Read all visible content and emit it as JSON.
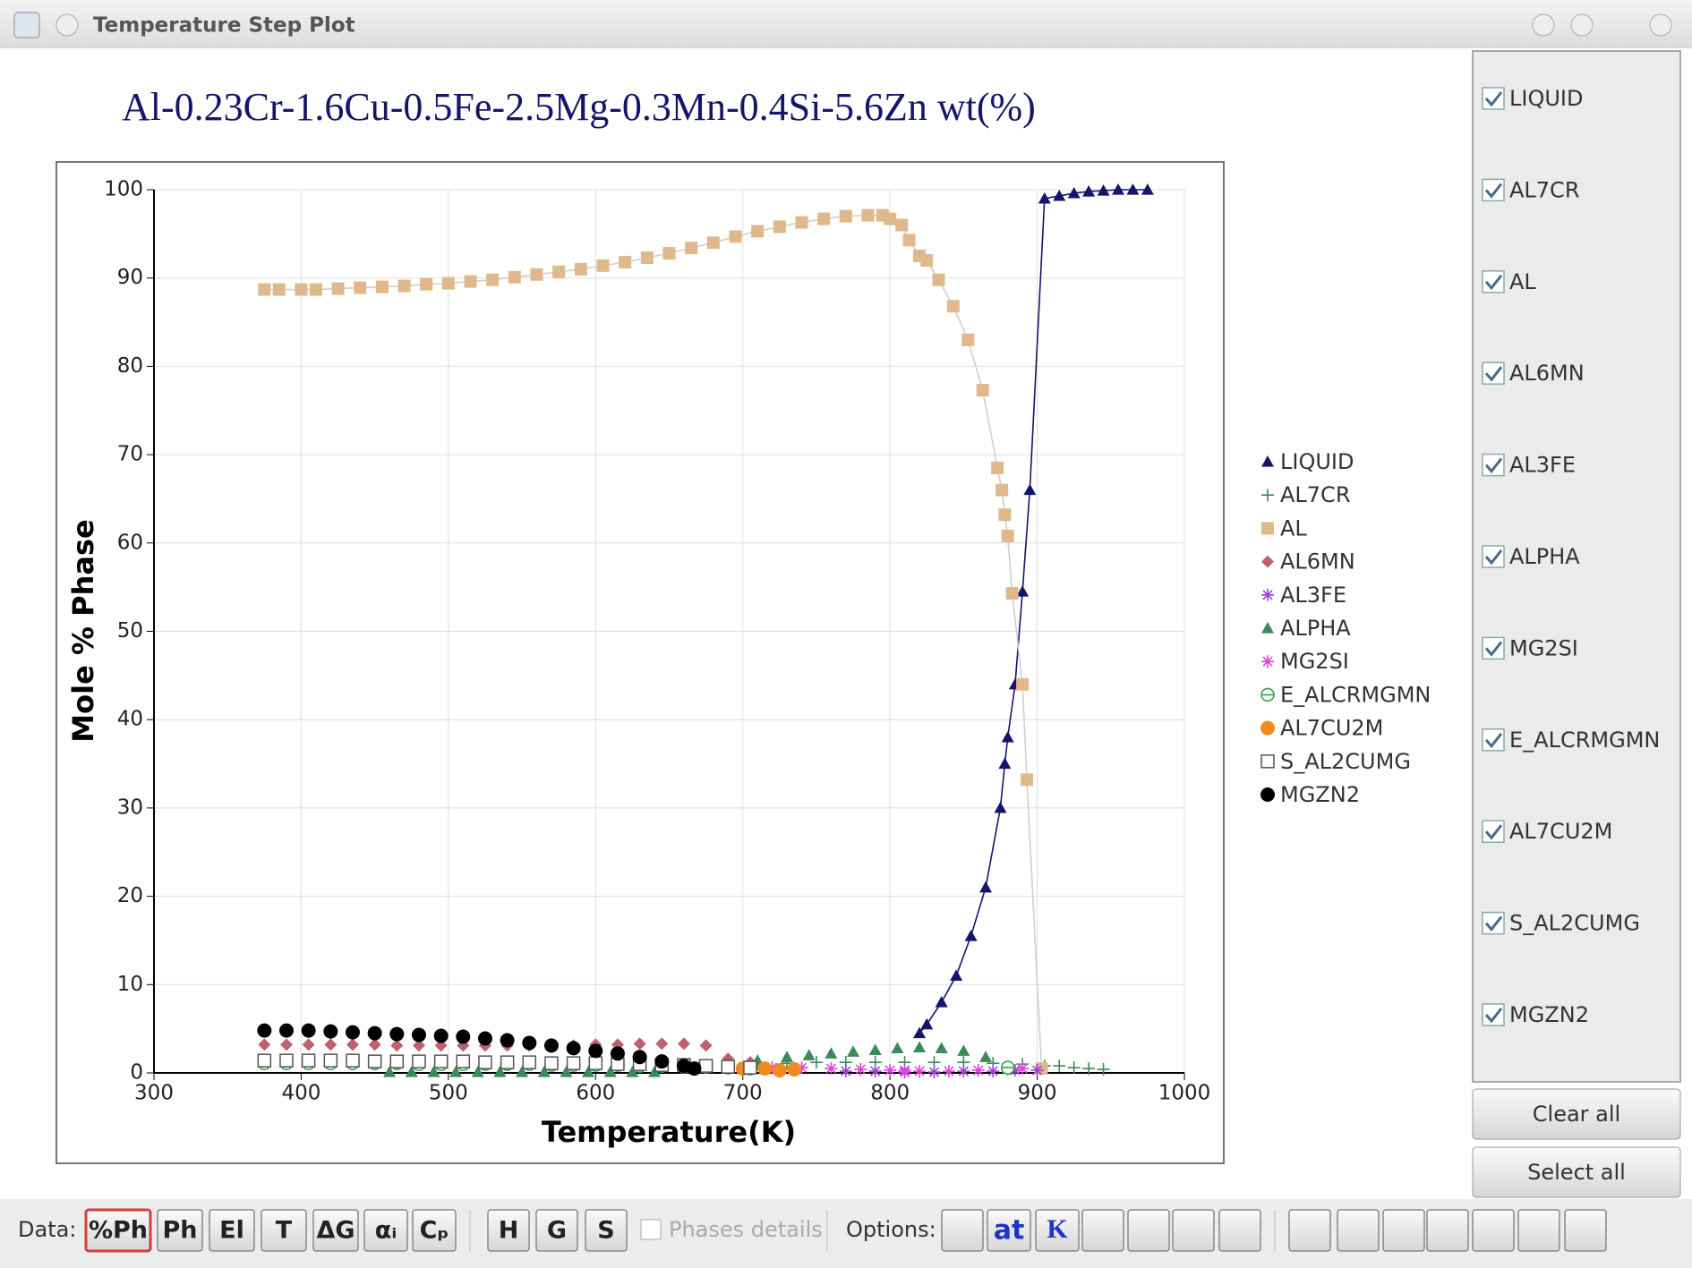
{
  "window": {
    "title": "Temperature Step Plot"
  },
  "chart_data": {
    "type": "scatter",
    "title": "Al-0.23Cr-1.6Cu-0.5Fe-2.5Mg-0.3Mn-0.4Si-5.6Zn wt(%)",
    "x_label": "Temperature(K)",
    "y_label": "Mole % Phase",
    "xlim": [
      300,
      1000
    ],
    "xticks": [
      300,
      400,
      500,
      600,
      700,
      800,
      900,
      1000
    ],
    "ylim": [
      0,
      100
    ],
    "yticks": [
      0,
      10,
      20,
      30,
      40,
      50,
      60,
      70,
      80,
      90,
      100
    ],
    "grid": true,
    "legend": "right",
    "series": [
      {
        "name": "LIQUID",
        "color": "#15156b",
        "marker": "triangle",
        "line": true,
        "x": [
          820,
          825,
          835,
          845,
          855,
          865,
          875,
          878,
          880,
          885,
          890,
          895,
          905,
          915,
          925,
          935,
          945,
          955,
          965,
          975
        ],
        "values": [
          4.5,
          5.5,
          8,
          11,
          15.5,
          21,
          30,
          35,
          38,
          44,
          54.5,
          66,
          99,
          99.3,
          99.6,
          99.8,
          99.9,
          100,
          100,
          100
        ]
      },
      {
        "name": "AL7CR",
        "color": "#3a8a5a",
        "marker": "plus",
        "x": [
          690,
          710,
          730,
          750,
          770,
          790,
          810,
          830,
          850,
          870,
          890,
          905,
          915,
          925,
          935,
          945
        ],
        "values": [
          0.9,
          1.0,
          1.1,
          1.2,
          1.2,
          1.2,
          1.2,
          1.2,
          1.2,
          1.1,
          1.0,
          0.8,
          0.8,
          0.6,
          0.5,
          0.4
        ]
      },
      {
        "name": "AL",
        "color": "#dfb98c",
        "marker": "square",
        "line": true,
        "x": [
          375,
          385,
          400,
          410,
          425,
          440,
          455,
          470,
          485,
          500,
          515,
          530,
          545,
          560,
          575,
          590,
          605,
          620,
          635,
          650,
          665,
          680,
          695,
          710,
          725,
          740,
          755,
          770,
          785,
          795,
          800,
          808,
          813,
          820,
          825,
          833,
          843,
          853,
          863,
          873,
          876,
          878,
          880,
          883,
          890,
          893,
          903
        ],
        "values": [
          88.7,
          88.7,
          88.7,
          88.7,
          88.8,
          88.9,
          89.0,
          89.1,
          89.3,
          89.4,
          89.6,
          89.8,
          90.1,
          90.4,
          90.7,
          91.0,
          91.4,
          91.8,
          92.3,
          92.8,
          93.4,
          94.0,
          94.7,
          95.3,
          95.8,
          96.3,
          96.7,
          97.0,
          97.1,
          97.1,
          96.7,
          96.0,
          94.3,
          92.5,
          92.0,
          89.8,
          86.8,
          83.0,
          77.3,
          68.5,
          66.0,
          63.2,
          60.8,
          54.3,
          44.0,
          33.2,
          0.5
        ]
      },
      {
        "name": "AL6MN",
        "color": "#c0606e",
        "marker": "diamond",
        "x": [
          375,
          390,
          405,
          420,
          435,
          450,
          465,
          480,
          495,
          510,
          525,
          540,
          555,
          570,
          585,
          600,
          615,
          630,
          645,
          660,
          675,
          690,
          705
        ],
        "values": [
          3.2,
          3.2,
          3.2,
          3.2,
          3.2,
          3.2,
          3.1,
          3.1,
          3.1,
          3.1,
          3.1,
          3.1,
          3.1,
          3.1,
          3.1,
          3.2,
          3.2,
          3.3,
          3.3,
          3.3,
          3.1,
          1.6,
          1.2
        ]
      },
      {
        "name": "AL3FE",
        "color": "#a040d0",
        "marker": "star",
        "x": [
          770,
          790,
          810,
          830,
          850,
          870,
          885,
          900
        ],
        "values": [
          0.2,
          0.2,
          0.1,
          0.1,
          0.2,
          0.2,
          0.3,
          0.3
        ]
      },
      {
        "name": "ALPHA",
        "color": "#3a8a5a",
        "marker": "triangle",
        "x": [
          460,
          475,
          490,
          505,
          520,
          535,
          550,
          565,
          580,
          595,
          610,
          625,
          640,
          670,
          690,
          710,
          730,
          745,
          760,
          775,
          790,
          805,
          820,
          835,
          850,
          865,
          880
        ],
        "values": [
          0.1,
          0.1,
          0.1,
          0.1,
          0.1,
          0.1,
          0.1,
          0.1,
          0.1,
          0.1,
          0.1,
          0.1,
          0.1,
          0.6,
          1.0,
          1.4,
          1.8,
          2.0,
          2.2,
          2.4,
          2.6,
          2.8,
          2.9,
          2.8,
          2.5,
          1.8,
          0.6
        ]
      },
      {
        "name": "MG2SI",
        "color": "#e040e0",
        "marker": "star",
        "x": [
          700,
          720,
          740,
          760,
          780,
          800,
          810,
          820,
          840,
          860,
          880,
          890
        ],
        "values": [
          0.5,
          0.6,
          0.6,
          0.5,
          0.4,
          0.3,
          0.3,
          0.2,
          0.2,
          0.3,
          0.4,
          0.5
        ]
      },
      {
        "name": "E_ALCRMGMN",
        "color": "#3aa050",
        "marker": "circle-open",
        "x": [
          375,
          390,
          405,
          420,
          435,
          450,
          465,
          480,
          495,
          510,
          525,
          540,
          555,
          570,
          585,
          600,
          615,
          630,
          645,
          660,
          675,
          690,
          705,
          880
        ],
        "values": [
          1.1,
          1.1,
          1.1,
          1.1,
          1.1,
          1.1,
          1.1,
          1.0,
          1.0,
          1.0,
          1.0,
          1.0,
          1.0,
          0.9,
          0.9,
          0.9,
          0.9,
          0.8,
          0.8,
          0.7,
          0.7,
          0.6,
          0.5,
          0.6
        ]
      },
      {
        "name": "AL7CU2M",
        "color": "#f08a20",
        "marker": "circle",
        "x": [
          700,
          715,
          725,
          735
        ],
        "values": [
          0.5,
          0.5,
          0.3,
          0.4
        ]
      },
      {
        "name": "S_AL2CUMG",
        "color": "#555555",
        "marker": "square-open",
        "x": [
          375,
          390,
          405,
          420,
          435,
          450,
          465,
          480,
          495,
          510,
          525,
          540,
          555,
          570,
          585,
          600,
          615,
          630,
          645,
          660,
          675,
          690,
          705
        ],
        "values": [
          1.4,
          1.4,
          1.4,
          1.4,
          1.4,
          1.3,
          1.3,
          1.3,
          1.3,
          1.3,
          1.2,
          1.2,
          1.2,
          1.1,
          1.1,
          1.1,
          1.0,
          1.0,
          0.9,
          0.9,
          0.8,
          0.7,
          0.6
        ]
      },
      {
        "name": "MGZN2",
        "color": "#000000",
        "marker": "circle",
        "x": [
          375,
          390,
          405,
          420,
          435,
          450,
          465,
          480,
          495,
          510,
          525,
          540,
          555,
          570,
          585,
          600,
          615,
          630,
          645,
          660,
          667
        ],
        "values": [
          4.8,
          4.8,
          4.8,
          4.7,
          4.6,
          4.5,
          4.4,
          4.3,
          4.2,
          4.1,
          3.9,
          3.7,
          3.4,
          3.1,
          2.8,
          2.5,
          2.2,
          1.8,
          1.3,
          0.8,
          0.5
        ]
      }
    ]
  },
  "phase_panel": {
    "checkboxes": [
      {
        "label": "LIQUID",
        "checked": true
      },
      {
        "label": "AL7CR",
        "checked": true
      },
      {
        "label": "AL",
        "checked": true
      },
      {
        "label": "AL6MN",
        "checked": true
      },
      {
        "label": "AL3FE",
        "checked": true
      },
      {
        "label": "ALPHA",
        "checked": true
      },
      {
        "label": "MG2SI",
        "checked": true
      },
      {
        "label": "E_ALCRMGMN",
        "checked": true
      },
      {
        "label": "AL7CU2M",
        "checked": true
      },
      {
        "label": "S_AL2CUMG",
        "checked": true
      },
      {
        "label": "MGZN2",
        "checked": true
      }
    ],
    "clear_button": "Clear all",
    "select_button": "Select all"
  },
  "toolbar": {
    "data_label": "Data:",
    "data_buttons": [
      "%Ph",
      "Ph",
      "El",
      "T",
      "ΔG",
      "αᵢ",
      "Cₚ"
    ],
    "energy_buttons": [
      "H",
      "G",
      "S"
    ],
    "phases_details": "Phases details",
    "options_label": "Options:",
    "unit_buttons": [
      "at",
      "K"
    ]
  }
}
